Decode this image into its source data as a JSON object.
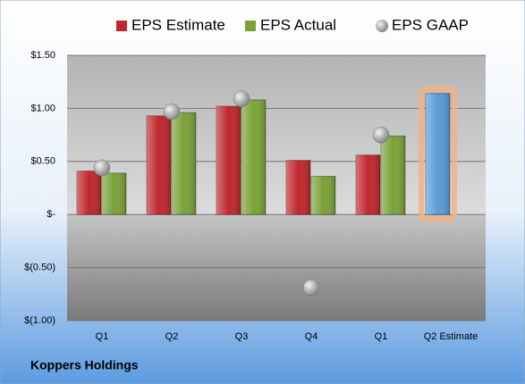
{
  "chart_data": {
    "type": "bar",
    "title": "Koppers Holdings",
    "categories": [
      "Q1",
      "Q2",
      "Q3",
      "Q4",
      "Q1",
      "Q2 Estimate"
    ],
    "series": [
      {
        "name": "EPS Estimate",
        "color": "#c0272d",
        "values": [
          0.41,
          0.93,
          1.02,
          0.51,
          0.56,
          1.14
        ]
      },
      {
        "name": "EPS Actual",
        "color": "#7aa237",
        "values": [
          0.39,
          0.96,
          1.08,
          0.36,
          0.74,
          null
        ]
      },
      {
        "name": "EPS GAAP",
        "color": "#a6a6a6",
        "values": [
          0.44,
          0.97,
          1.09,
          -0.69,
          0.75,
          null
        ],
        "marker": "circle"
      }
    ],
    "highlight": {
      "series": 0,
      "index": 5,
      "color": "#5b9bd5",
      "glow": "#f4b183"
    },
    "ylim": [
      -1.0,
      1.5
    ],
    "yticks": [
      {
        "value": 1.5,
        "label": "$1.50"
      },
      {
        "value": 1.0,
        "label": "$1.00"
      },
      {
        "value": 0.5,
        "label": "$0.50"
      },
      {
        "value": 0,
        "label": "$-"
      },
      {
        "value": -0.5,
        "label": "$(0.50)"
      },
      {
        "value": -1.0,
        "label": "$(1.00)"
      }
    ],
    "grid": true,
    "legend": "top"
  }
}
